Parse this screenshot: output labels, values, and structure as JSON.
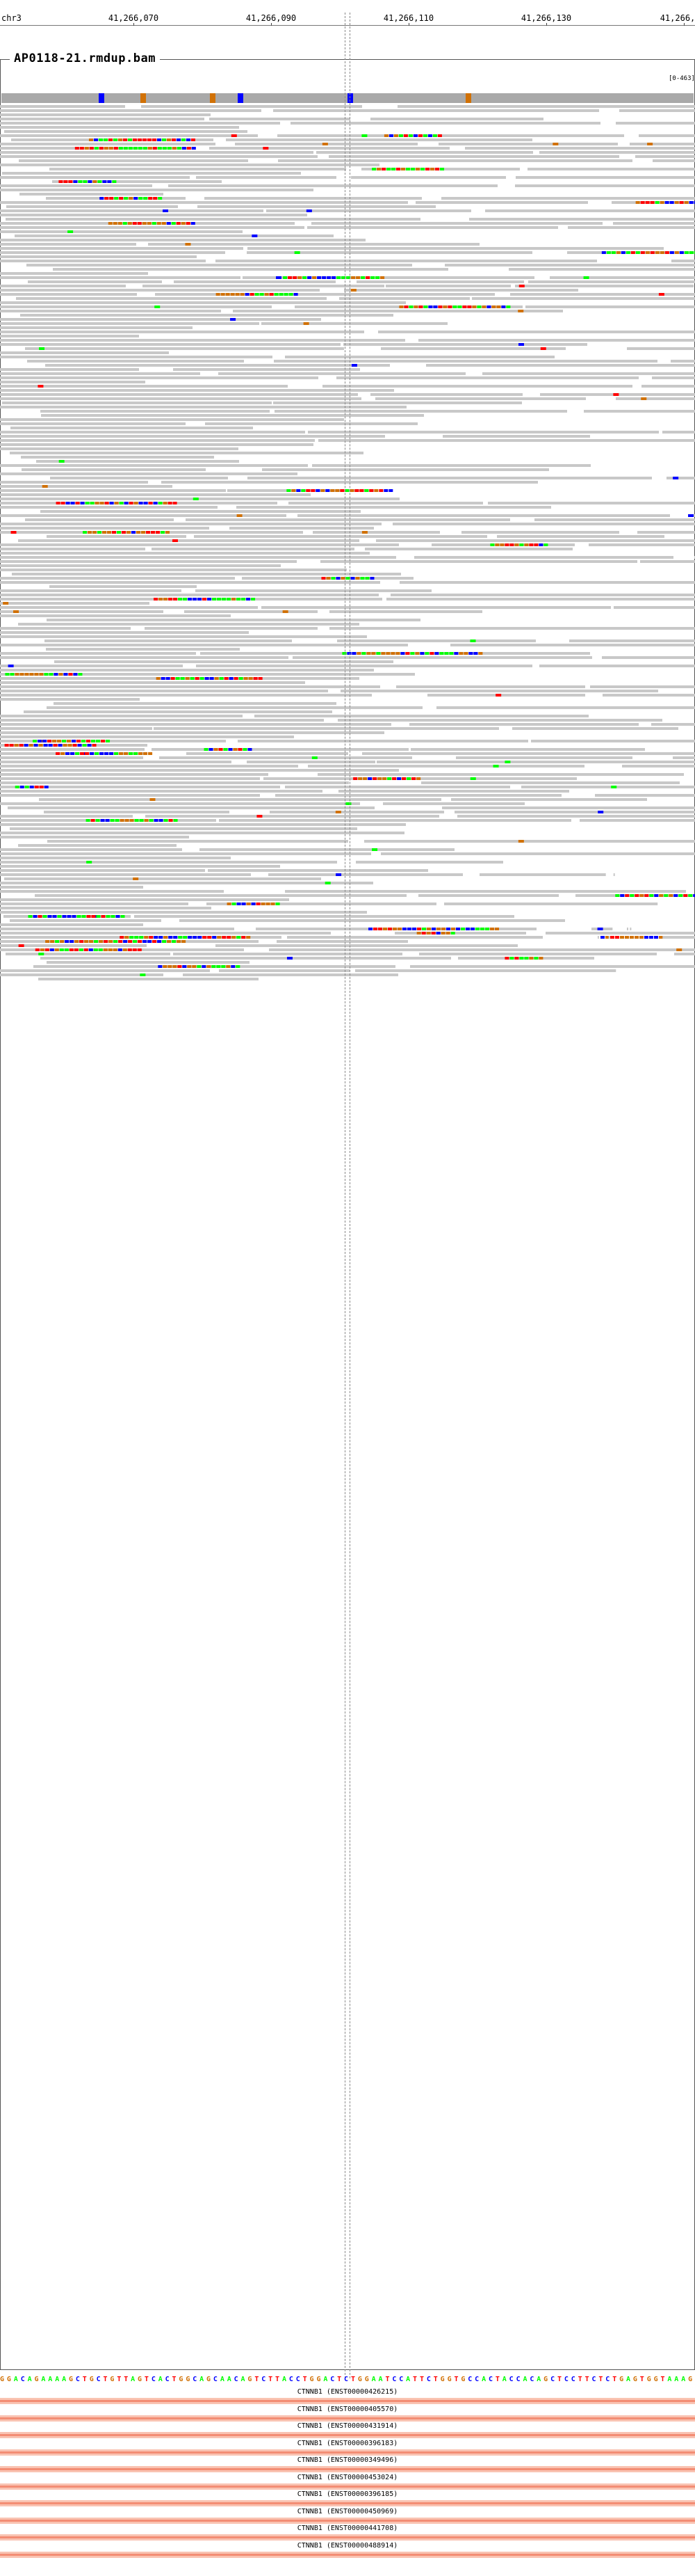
{
  "ruler": {
    "chrom": "chr3",
    "ticks": [
      "41,266,070",
      "41,266,090",
      "41,266,110",
      "41,266,130",
      "41,266,"
    ]
  },
  "panel": {
    "title": "AP0118-21.rmdup.bam",
    "range": "[0-463]"
  },
  "colors": {
    "read": "#c8c8c8",
    "A": "#00ff00",
    "C": "#0000ff",
    "G": "#d17105",
    "T": "#ff0000",
    "panel_border": "#555555",
    "gene_fill": "#f9c3b2",
    "gene_line": "#f38d74"
  },
  "sequence": "GGACAGAAAAGCTGCTGTTAGTCACTGGCAGCAACAGTCTTACCTGGACTCTGGAATCCATTCTGGTGCCACTACCACAGCTCCTTCTCTGAGTGGTAAAG",
  "genes": [
    "CTNNB1 (ENST00000426215)",
    "CTNNB1 (ENST00000405570)",
    "CTNNB1 (ENST00000431914)",
    "CTNNB1 (ENST00000396183)",
    "CTNNB1 (ENST00000349496)",
    "CTNNB1 (ENST00000453024)",
    "CTNNB1 (ENST00000396185)",
    "CTNNB1 (ENST00000450969)",
    "CTNNB1 (ENST00000441708)",
    "CTNNB1 (ENST00000488914)"
  ]
}
